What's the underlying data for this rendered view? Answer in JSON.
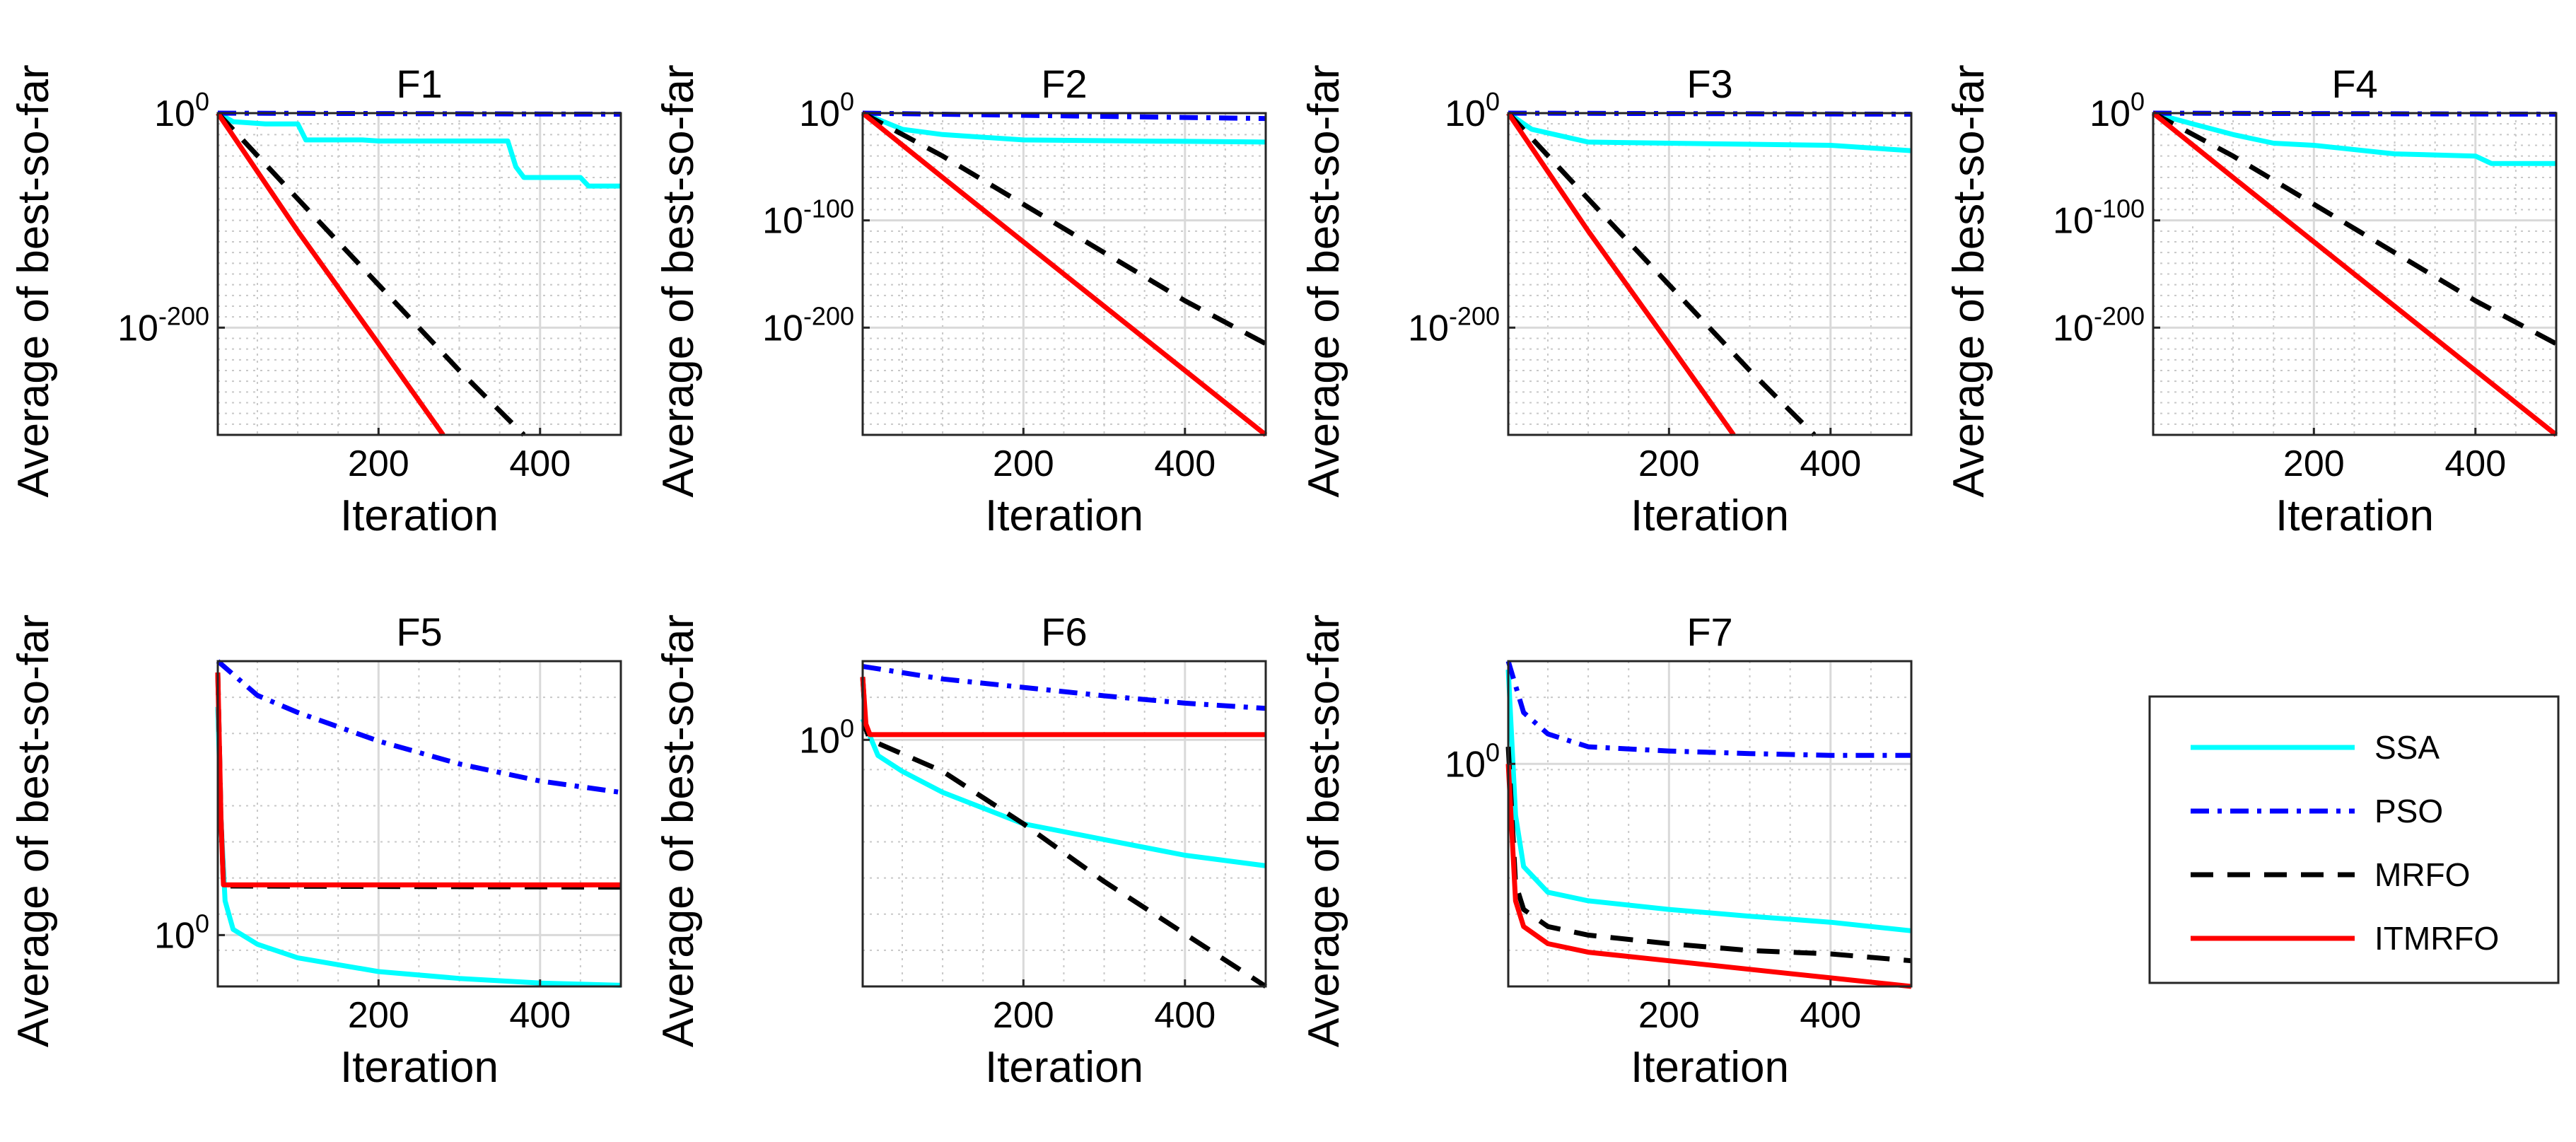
{
  "figure": {
    "description_free": true
  },
  "legend": {
    "entries": [
      {
        "name": "SSA",
        "color": "#00FFFF",
        "dash": "solid"
      },
      {
        "name": "PSO",
        "color": "#0000FF",
        "dash": "dashdot"
      },
      {
        "name": "MRFO",
        "color": "#000000",
        "dash": "dashed"
      },
      {
        "name": "ITMRFO",
        "color": "#FF0000",
        "dash": "solid"
      }
    ]
  },
  "chart_data": [
    {
      "type": "line",
      "title": "F1",
      "xlabel": "Iteration",
      "ylabel": "Average of best-so-far",
      "yscale": "log",
      "xlim": [
        1,
        500
      ],
      "ylim": [
        -300,
        0
      ],
      "x_ticks": [
        200,
        400
      ],
      "y_ticks": [
        {
          "base": "10",
          "exp": "0",
          "value": 0
        },
        {
          "base": "10",
          "exp": "-200",
          "value": -200
        }
      ],
      "series": [
        {
          "name": "SSA",
          "x": [
            1,
            20,
            60,
            100,
            110,
            180,
            200,
            360,
            370,
            380,
            450,
            460,
            500
          ],
          "y": [
            0,
            -8,
            -10,
            -10,
            -25,
            -25,
            -26,
            -26,
            -50,
            -60,
            -60,
            -68,
            -68
          ]
        },
        {
          "name": "PSO",
          "x": [
            1,
            500
          ],
          "y": [
            0,
            -1
          ]
        },
        {
          "name": "MRFO",
          "x": [
            1,
            100,
            200,
            300,
            380
          ],
          "y": [
            0,
            -80,
            -160,
            -240,
            -300
          ]
        },
        {
          "name": "ITMRFO",
          "x": [
            1,
            100,
            200,
            280
          ],
          "y": [
            0,
            -110,
            -215,
            -300
          ]
        }
      ]
    },
    {
      "type": "line",
      "title": "F2",
      "xlabel": "Iteration",
      "ylabel": "Average of best-so-far",
      "yscale": "log",
      "xlim": [
        1,
        500
      ],
      "ylim": [
        -300,
        0
      ],
      "x_ticks": [
        200,
        400
      ],
      "y_ticks": [
        {
          "base": "10",
          "exp": "0",
          "value": 0
        },
        {
          "base": "10",
          "exp": "-100",
          "value": -100
        },
        {
          "base": "10",
          "exp": "-200",
          "value": -200
        }
      ],
      "series": [
        {
          "name": "SSA",
          "x": [
            1,
            50,
            100,
            200,
            500
          ],
          "y": [
            0,
            -15,
            -20,
            -25,
            -27
          ]
        },
        {
          "name": "PSO",
          "x": [
            1,
            500
          ],
          "y": [
            0,
            -5
          ]
        },
        {
          "name": "MRFO",
          "x": [
            1,
            100,
            200,
            300,
            400,
            500
          ],
          "y": [
            0,
            -40,
            -85,
            -130,
            -175,
            -215
          ]
        },
        {
          "name": "ITMRFO",
          "x": [
            1,
            100,
            200,
            300,
            400,
            500
          ],
          "y": [
            0,
            -60,
            -120,
            -180,
            -240,
            -300
          ]
        }
      ]
    },
    {
      "type": "line",
      "title": "F3",
      "xlabel": "Iteration",
      "ylabel": "Average of best-so-far",
      "yscale": "log",
      "xlim": [
        1,
        500
      ],
      "ylim": [
        -300,
        0
      ],
      "x_ticks": [
        200,
        400
      ],
      "y_ticks": [
        {
          "base": "10",
          "exp": "0",
          "value": 0
        },
        {
          "base": "10",
          "exp": "-200",
          "value": -200
        }
      ],
      "series": [
        {
          "name": "SSA",
          "x": [
            1,
            30,
            100,
            200,
            300,
            400,
            500
          ],
          "y": [
            0,
            -15,
            -27,
            -28,
            -29,
            -30,
            -35
          ]
        },
        {
          "name": "PSO",
          "x": [
            1,
            500
          ],
          "y": [
            0,
            -1
          ]
        },
        {
          "name": "MRFO",
          "x": [
            1,
            100,
            200,
            300,
            380
          ],
          "y": [
            0,
            -80,
            -160,
            -240,
            -300
          ]
        },
        {
          "name": "ITMRFO",
          "x": [
            1,
            100,
            200,
            280
          ],
          "y": [
            0,
            -110,
            -215,
            -300
          ]
        }
      ]
    },
    {
      "type": "line",
      "title": "F4",
      "xlabel": "Iteration",
      "ylabel": "Average of best-so-far",
      "yscale": "log",
      "xlim": [
        1,
        500
      ],
      "ylim": [
        -300,
        0
      ],
      "x_ticks": [
        200,
        400
      ],
      "y_ticks": [
        {
          "base": "10",
          "exp": "0",
          "value": 0
        },
        {
          "base": "10",
          "exp": "-100",
          "value": -100
        },
        {
          "base": "10",
          "exp": "-200",
          "value": -200
        }
      ],
      "series": [
        {
          "name": "SSA",
          "x": [
            1,
            50,
            100,
            150,
            200,
            300,
            400,
            420,
            500
          ],
          "y": [
            0,
            -10,
            -20,
            -28,
            -30,
            -38,
            -40,
            -47,
            -47
          ]
        },
        {
          "name": "PSO",
          "x": [
            1,
            500
          ],
          "y": [
            0,
            -1
          ]
        },
        {
          "name": "MRFO",
          "x": [
            1,
            100,
            200,
            300,
            400,
            500
          ],
          "y": [
            0,
            -40,
            -85,
            -130,
            -175,
            -215
          ]
        },
        {
          "name": "ITMRFO",
          "x": [
            1,
            100,
            200,
            300,
            400,
            500
          ],
          "y": [
            0,
            -60,
            -120,
            -180,
            -240,
            -300
          ]
        }
      ]
    },
    {
      "type": "line",
      "title": "F5",
      "xlabel": "Iteration",
      "ylabel": "Average of best-so-far",
      "yscale": "log",
      "xlim": [
        1,
        500
      ],
      "ylim": [
        -0.45,
        2.4
      ],
      "x_ticks": [
        200,
        400
      ],
      "y_ticks": [
        {
          "base": "10",
          "exp": "0",
          "value": 0
        }
      ],
      "series": [
        {
          "name": "SSA",
          "x": [
            1,
            5,
            10,
            20,
            50,
            100,
            200,
            300,
            400,
            500
          ],
          "y": [
            2.0,
            1.0,
            0.3,
            0.05,
            -0.08,
            -0.2,
            -0.32,
            -0.38,
            -0.42,
            -0.44
          ]
        },
        {
          "name": "PSO",
          "x": [
            1,
            50,
            100,
            200,
            300,
            400,
            500
          ],
          "y": [
            2.4,
            2.1,
            1.95,
            1.7,
            1.5,
            1.35,
            1.25
          ]
        },
        {
          "name": "MRFO",
          "x": [
            1,
            5,
            8,
            500
          ],
          "y": [
            2.3,
            1.0,
            0.43,
            0.42
          ]
        },
        {
          "name": "ITMRFO",
          "x": [
            1,
            5,
            8,
            500
          ],
          "y": [
            2.3,
            1.0,
            0.44,
            0.44
          ]
        }
      ]
    },
    {
      "type": "line",
      "title": "F6",
      "xlabel": "Iteration",
      "ylabel": "Average of best-so-far",
      "yscale": "log",
      "xlim": [
        1,
        500
      ],
      "ylim": [
        -2.35,
        0.75
      ],
      "x_ticks": [
        200,
        400
      ],
      "y_ticks": [
        {
          "base": "10",
          "exp": "0",
          "value": 0
        }
      ],
      "series": [
        {
          "name": "SSA",
          "x": [
            1,
            20,
            50,
            100,
            200,
            300,
            400,
            500
          ],
          "y": [
            0.2,
            -0.15,
            -0.3,
            -0.5,
            -0.8,
            -0.95,
            -1.1,
            -1.2
          ]
        },
        {
          "name": "PSO",
          "x": [
            1,
            100,
            200,
            300,
            400,
            500
          ],
          "y": [
            0.7,
            0.58,
            0.5,
            0.42,
            0.35,
            0.3
          ]
        },
        {
          "name": "MRFO",
          "x": [
            1,
            5,
            10,
            100,
            200,
            300,
            400,
            500
          ],
          "y": [
            0.6,
            0.1,
            0.0,
            -0.3,
            -0.8,
            -1.35,
            -1.85,
            -2.35
          ]
        },
        {
          "name": "ITMRFO",
          "x": [
            1,
            5,
            10,
            500
          ],
          "y": [
            0.6,
            0.15,
            0.05,
            0.05
          ]
        }
      ]
    },
    {
      "type": "line",
      "title": "F7",
      "xlabel": "Iteration",
      "ylabel": "Average of best-so-far",
      "yscale": "log",
      "xlim": [
        1,
        500
      ],
      "ylim": [
        -2.6,
        1.2
      ],
      "x_ticks": [
        200,
        400
      ],
      "y_ticks": [
        {
          "base": "10",
          "exp": "0",
          "value": 0
        }
      ],
      "series": [
        {
          "name": "SSA",
          "x": [
            1,
            10,
            20,
            50,
            100,
            200,
            300,
            400,
            500
          ],
          "y": [
            1.1,
            -0.6,
            -1.2,
            -1.5,
            -1.6,
            -1.7,
            -1.78,
            -1.85,
            -1.95
          ]
        },
        {
          "name": "PSO",
          "x": [
            1,
            20,
            50,
            100,
            200,
            300,
            400,
            500
          ],
          "y": [
            1.2,
            0.6,
            0.35,
            0.2,
            0.15,
            0.12,
            0.1,
            0.1
          ]
        },
        {
          "name": "MRFO",
          "x": [
            1,
            10,
            20,
            50,
            100,
            200,
            300,
            400,
            500
          ],
          "y": [
            0.2,
            -1.4,
            -1.7,
            -1.9,
            -2.0,
            -2.1,
            -2.18,
            -2.22,
            -2.3
          ]
        },
        {
          "name": "ITMRFO",
          "x": [
            1,
            10,
            20,
            50,
            100,
            200,
            300,
            400,
            500
          ],
          "y": [
            0.0,
            -1.6,
            -1.9,
            -2.1,
            -2.2,
            -2.3,
            -2.4,
            -2.5,
            -2.6
          ]
        }
      ]
    }
  ]
}
